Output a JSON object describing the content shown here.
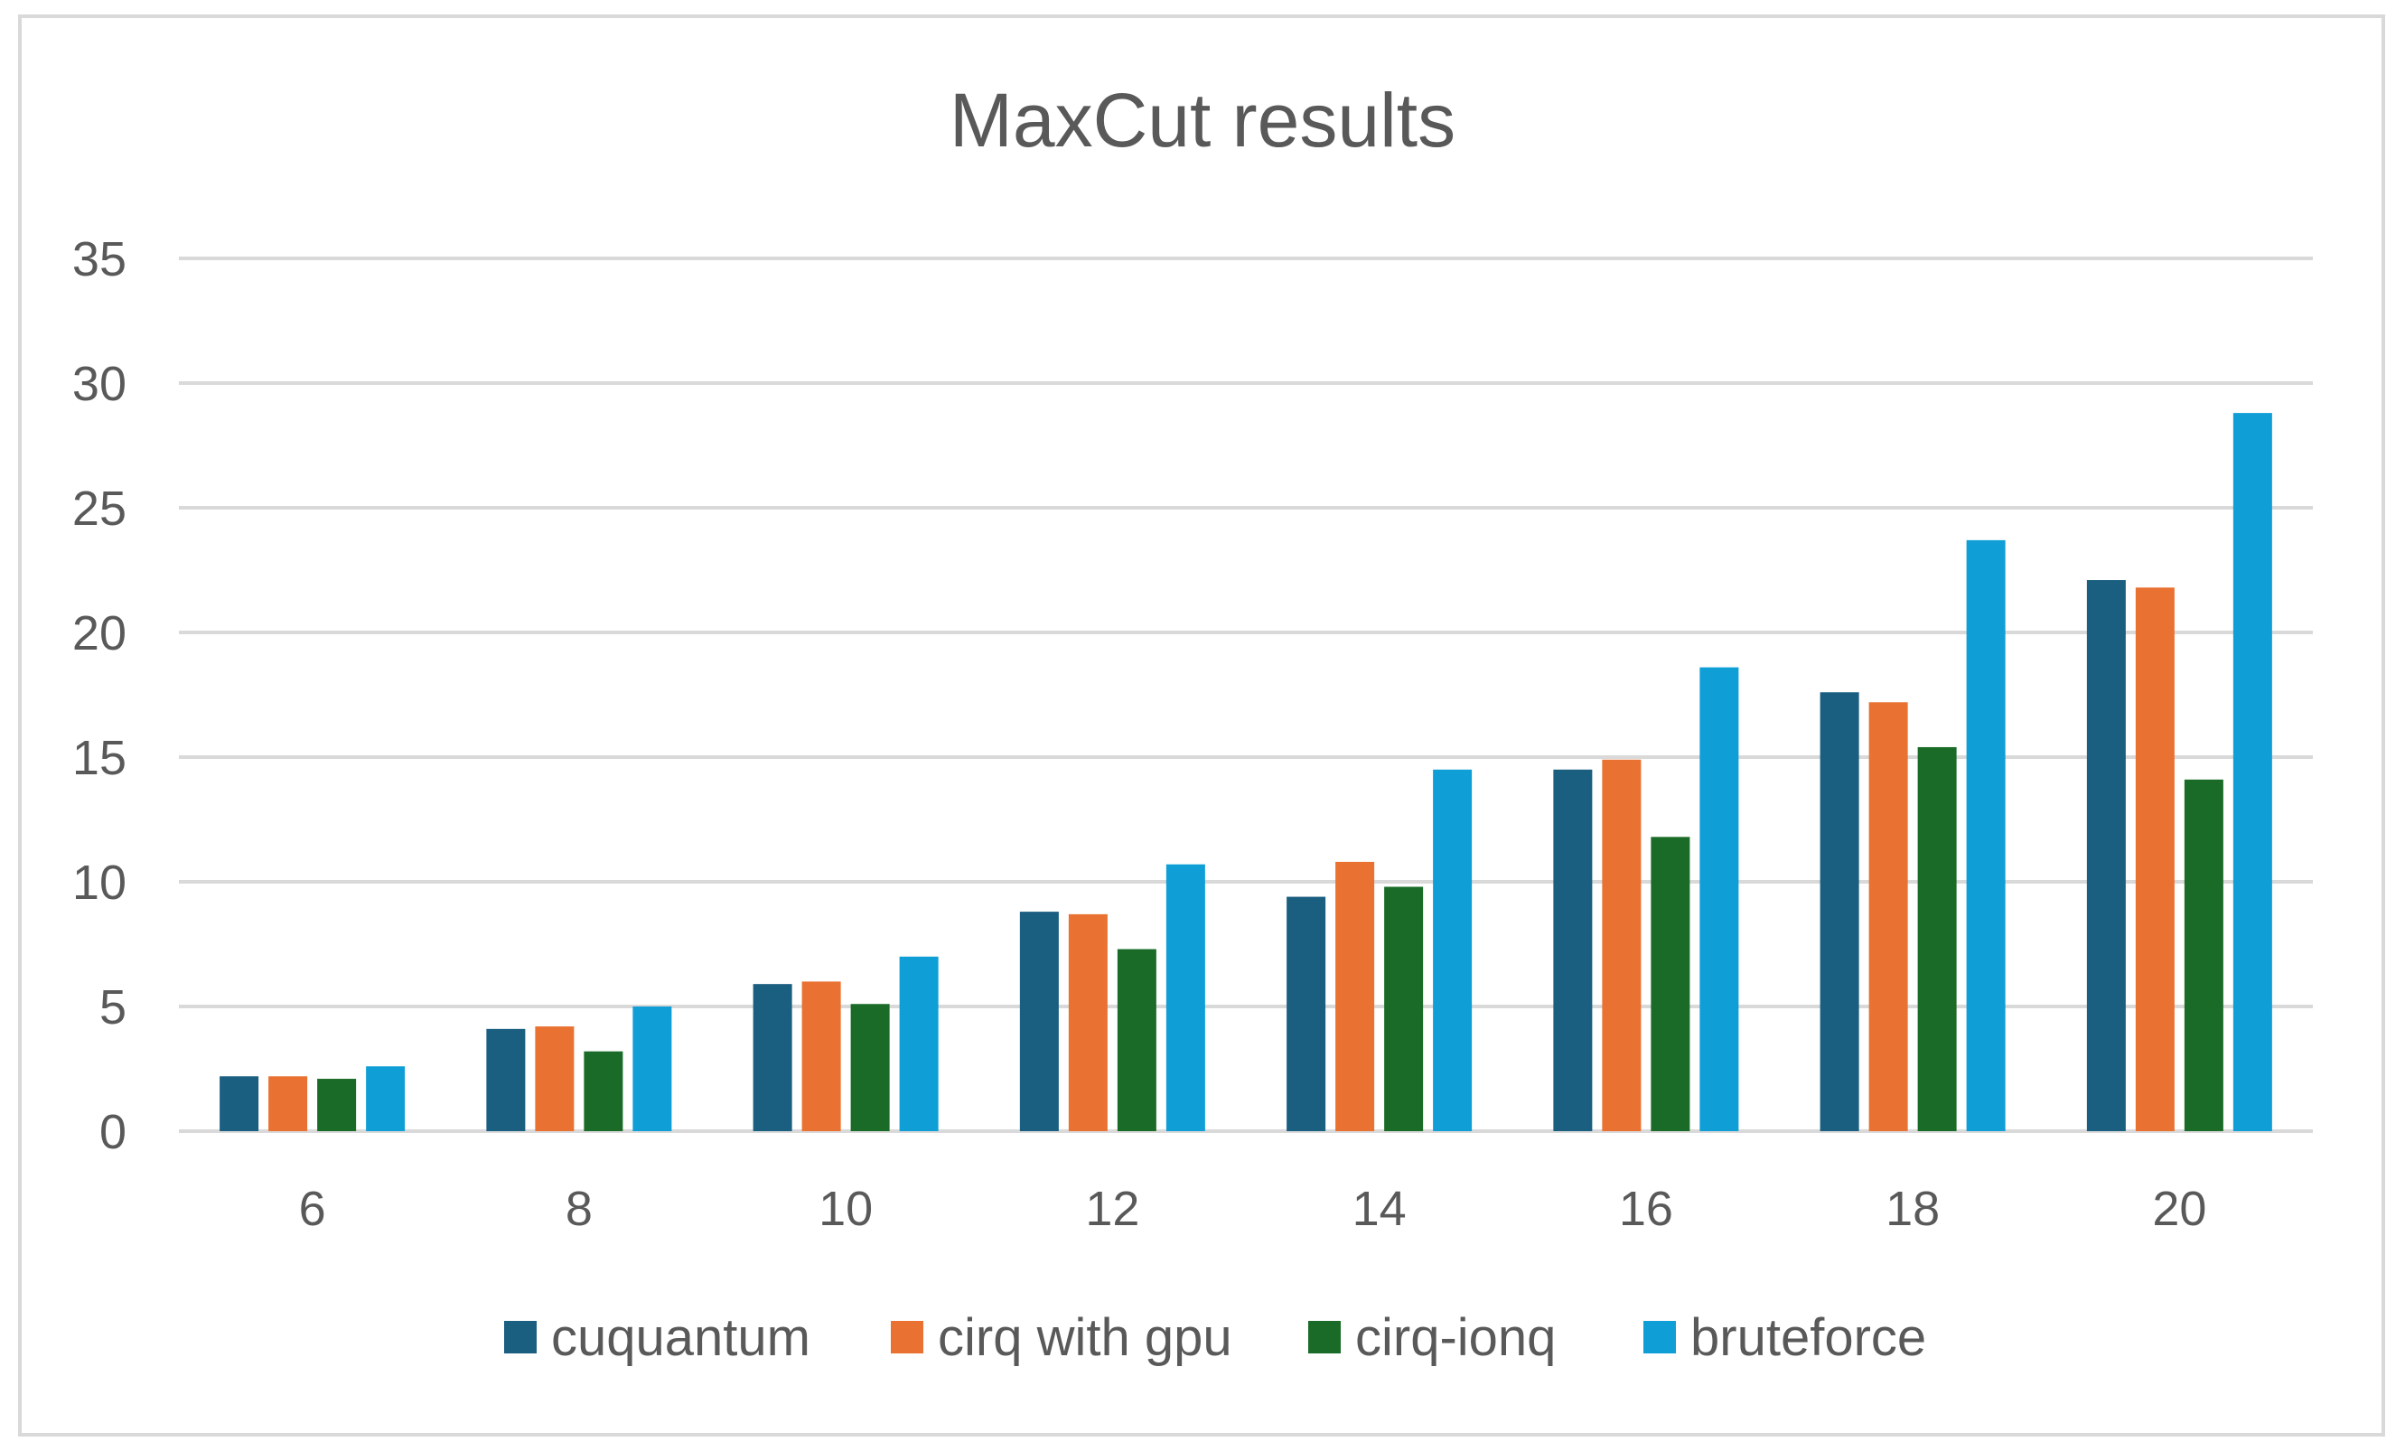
{
  "chart_data": {
    "type": "bar",
    "title": "MaxCut results",
    "xlabel": "",
    "ylabel": "",
    "categories": [
      "6",
      "8",
      "10",
      "12",
      "14",
      "16",
      "18",
      "20"
    ],
    "ylim": [
      0,
      35
    ],
    "yticks": [
      0,
      5,
      10,
      15,
      20,
      25,
      30,
      35
    ],
    "grid": true,
    "legend_position": "bottom",
    "series": [
      {
        "name": "cuquantum",
        "color": "#1a5e80",
        "values": [
          2.2,
          4.1,
          5.9,
          8.8,
          9.4,
          14.5,
          17.6,
          22.1
        ]
      },
      {
        "name": "cirq with gpu",
        "color": "#e97131",
        "values": [
          2.2,
          4.2,
          6.0,
          8.7,
          10.8,
          14.9,
          17.2,
          21.8
        ]
      },
      {
        "name": "cirq-ionq",
        "color": "#1a6b28",
        "values": [
          2.1,
          3.2,
          5.1,
          7.3,
          9.8,
          11.8,
          15.4,
          14.1
        ]
      },
      {
        "name": "bruteforce",
        "color": "#0f9ed5",
        "values": [
          2.6,
          5.0,
          7.0,
          10.7,
          14.5,
          18.6,
          23.7,
          28.8
        ]
      }
    ]
  }
}
